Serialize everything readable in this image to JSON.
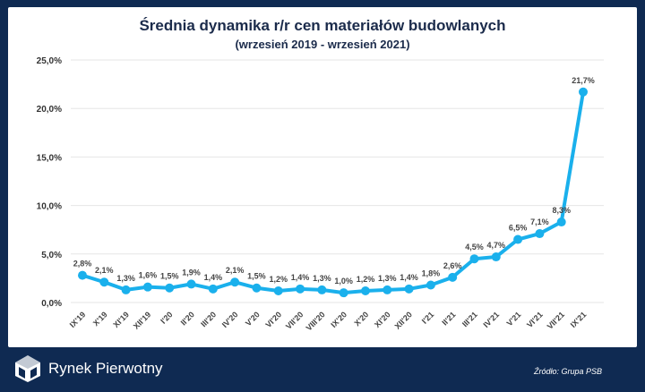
{
  "chart_data": {
    "type": "line",
    "title": "Średnia dynamika r/r cen materiałów budowlanych",
    "subtitle": "(wrzesień 2019 - wrzesień 2021)",
    "categories": [
      "IX'19",
      "X'19",
      "XI'19",
      "XII'19",
      "I'20",
      "II'20",
      "III'20",
      "IV'20",
      "V'20",
      "VI'20",
      "VII'20",
      "VIII'20",
      "IX'20",
      "X'20",
      "XI'20",
      "XII'20",
      "I'21",
      "II'21",
      "III'21",
      "IV'21",
      "V'21",
      "VI'21",
      "VII'21",
      "IX'21"
    ],
    "values": [
      2.8,
      2.1,
      1.3,
      1.6,
      1.5,
      1.9,
      1.4,
      2.1,
      1.5,
      1.2,
      1.4,
      1.3,
      1.0,
      1.2,
      1.3,
      1.4,
      1.8,
      2.6,
      4.5,
      4.7,
      6.5,
      7.1,
      8.3,
      21.7
    ],
    "data_labels": [
      "2,8%",
      "2,1%",
      "1,3%",
      "1,6%",
      "1,5%",
      "1,9%",
      "1,4%",
      "2,1%",
      "1,5%",
      "1,2%",
      "1,4%",
      "1,3%",
      "1,0%",
      "1,2%",
      "1,3%",
      "1,4%",
      "1,8%",
      "2,6%",
      "4,5%",
      "4,7%",
      "6,5%",
      "7,1%",
      "8,3%",
      "21,7%"
    ],
    "yticks": [
      "0,0%",
      "5,0%",
      "10,0%",
      "15,0%",
      "20,0%",
      "25,0%"
    ],
    "ylim": [
      0,
      25
    ],
    "grid": true,
    "line_color": "#1ab0ec"
  },
  "footer": {
    "brand": "Rynek Pierwotny",
    "source": "Źródło: Grupa PSB"
  }
}
